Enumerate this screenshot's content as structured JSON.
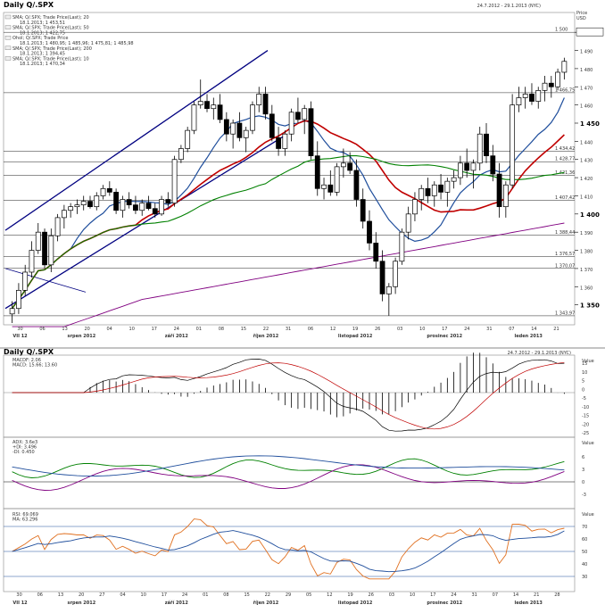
{
  "chart_title": "Daily Q/.SPX",
  "date_range": "24.7.2012 - 29.1.2013 (NYC)",
  "axis_header": [
    "Price",
    "USD"
  ],
  "panel2_title": "Daily Q/.SPX",
  "panel2_range": "24.7.2012 - 29.1.2013 (NYC)",
  "legend_price": [
    {
      "text": "SMA; Q/.SPX; Trade Price(Last); 20",
      "color": "#c00000"
    },
    {
      "text": "18.1.2013; 1 453,51",
      "color": "#c00000"
    },
    {
      "text": "SMA; Q/.SPX; Trade Price(Last); 50",
      "color": "#008000"
    },
    {
      "text": "18.1.2013; 1 422,75",
      "color": "#008000"
    },
    {
      "text": "Ohol; Q/.SPX; Trade Price",
      "color": "#000000"
    },
    {
      "text": "18.1.2013; 1 480,95; 1 485,96; 1 475,81; 1 485,98",
      "color": "#000000"
    },
    {
      "text": "SMA; Q/.SPX; Trade Price(Last); 200",
      "color": "#800080"
    },
    {
      "text": "18.1.2013; 1 394,45",
      "color": "#800080"
    },
    {
      "text": "SMA; Q/.SPX; Trade Price(Last); 10",
      "color": "#1f4e9c"
    },
    {
      "text": "18.1.2013; 1 470,34",
      "color": "#1f4e9c"
    }
  ],
  "legend_macd": [
    {
      "text": "MACDF: 2.06",
      "color": "#000"
    },
    {
      "text": "MACD: 15.66; 13.60",
      "color": "#c00000"
    }
  ],
  "legend_dmi": [
    {
      "text": "ADX: 3.6e3",
      "color": "#1f4e9c"
    },
    {
      "text": "+DI: 3.496",
      "color": "#008000"
    },
    {
      "text": "-DI: 0.450",
      "color": "#800080"
    }
  ],
  "legend_rsi": [
    {
      "text": "RSI: 69.069",
      "color": "#e07020"
    },
    {
      "text": "MA: 63.296",
      "color": "#1f4e9c"
    }
  ],
  "right_axis_unit": [
    "Value",
    "USD"
  ],
  "price_ticks": [
    "1 500",
    "1 490",
    "1 480",
    "1 470",
    "1 460",
    "1 450",
    "1 440",
    "1 430",
    "1 420",
    "1 410",
    "1 400",
    "1 390",
    "1 380",
    "1 370",
    "1 360",
    "1 350"
  ],
  "hlines": [
    "1 500",
    "1 466,75",
    "1 434,42",
    "1 428,77",
    "1 421,36",
    "1 407,42",
    "1 388,44",
    "1 376,57",
    "1 370,07",
    "1 343,97"
  ],
  "macd_ticks": [
    "15",
    "10",
    "5",
    "0",
    "-5",
    "-10",
    "-15",
    "-20",
    "-25"
  ],
  "dmi_ticks": [
    "6",
    "3",
    "0",
    "-3"
  ],
  "rsi_ticks": [
    "70",
    "60",
    "50",
    "40",
    "30"
  ],
  "x_days": [
    "30",
    "06",
    "13",
    "20",
    "27",
    "04",
    "10",
    "17",
    "24",
    "01",
    "08",
    "15",
    "22",
    "29",
    "05",
    "12",
    "19",
    "26",
    "03",
    "10",
    "17",
    "24",
    "31",
    "07",
    "14",
    "21",
    "28"
  ],
  "x_days_price": [
    "30",
    "06",
    "13",
    "20",
    "04",
    "10",
    "17",
    "24",
    "01",
    "08",
    "15",
    "22",
    "31",
    "06",
    "12",
    "19",
    "26",
    "03",
    "10",
    "17",
    "24",
    "31",
    "07",
    "14",
    "21"
  ],
  "x_months": [
    "VII 12",
    "srpen 2012",
    "září 2012",
    "říjen 2012",
    "listopad 2012",
    "prosinec 2012",
    "leden 2013"
  ],
  "chart_data": {
    "type": "candlestick",
    "title": "Daily Q/.SPX",
    "ylabel": "Price USD",
    "ylim": [
      1340,
      1505
    ],
    "candles": [
      [
        1345,
        1352,
        1340,
        1348
      ],
      [
        1348,
        1362,
        1345,
        1358
      ],
      [
        1358,
        1372,
        1355,
        1368
      ],
      [
        1368,
        1385,
        1365,
        1380
      ],
      [
        1380,
        1395,
        1378,
        1390
      ],
      [
        1390,
        1392,
        1370,
        1372
      ],
      [
        1372,
        1392,
        1368,
        1388
      ],
      [
        1388,
        1400,
        1385,
        1398
      ],
      [
        1398,
        1405,
        1392,
        1402
      ],
      [
        1402,
        1406,
        1398,
        1404
      ],
      [
        1404,
        1408,
        1400,
        1405
      ],
      [
        1405,
        1410,
        1402,
        1407
      ],
      [
        1407,
        1410,
        1403,
        1404
      ],
      [
        1404,
        1412,
        1402,
        1410
      ],
      [
        1410,
        1416,
        1408,
        1414
      ],
      [
        1414,
        1418,
        1410,
        1412
      ],
      [
        1412,
        1414,
        1400,
        1402
      ],
      [
        1402,
        1410,
        1398,
        1408
      ],
      [
        1408,
        1412,
        1403,
        1405
      ],
      [
        1405,
        1410,
        1400,
        1402
      ],
      [
        1402,
        1408,
        1399,
        1406
      ],
      [
        1406,
        1410,
        1402,
        1403
      ],
      [
        1403,
        1406,
        1398,
        1400
      ],
      [
        1400,
        1410,
        1399,
        1408
      ],
      [
        1408,
        1412,
        1404,
        1406
      ],
      [
        1406,
        1432,
        1404,
        1430
      ],
      [
        1430,
        1438,
        1428,
        1436
      ],
      [
        1436,
        1448,
        1434,
        1446
      ],
      [
        1446,
        1462,
        1444,
        1460
      ],
      [
        1460,
        1474,
        1458,
        1462
      ],
      [
        1462,
        1466,
        1456,
        1458
      ],
      [
        1458,
        1464,
        1452,
        1460
      ],
      [
        1460,
        1466,
        1450,
        1452
      ],
      [
        1452,
        1456,
        1440,
        1444
      ],
      [
        1444,
        1452,
        1436,
        1450
      ],
      [
        1450,
        1456,
        1440,
        1442
      ],
      [
        1442,
        1448,
        1434,
        1446
      ],
      [
        1446,
        1462,
        1444,
        1460
      ],
      [
        1460,
        1470,
        1456,
        1466
      ],
      [
        1466,
        1470,
        1452,
        1455
      ],
      [
        1455,
        1460,
        1440,
        1442
      ],
      [
        1442,
        1448,
        1432,
        1436
      ],
      [
        1436,
        1446,
        1432,
        1444
      ],
      [
        1444,
        1458,
        1440,
        1456
      ],
      [
        1456,
        1464,
        1450,
        1452
      ],
      [
        1452,
        1460,
        1444,
        1458
      ],
      [
        1458,
        1462,
        1430,
        1432
      ],
      [
        1432,
        1440,
        1410,
        1414
      ],
      [
        1414,
        1420,
        1408,
        1416
      ],
      [
        1416,
        1424,
        1410,
        1412
      ],
      [
        1412,
        1428,
        1410,
        1426
      ],
      [
        1426,
        1436,
        1420,
        1428
      ],
      [
        1428,
        1434,
        1422,
        1424
      ],
      [
        1424,
        1430,
        1404,
        1408
      ],
      [
        1408,
        1414,
        1392,
        1396
      ],
      [
        1396,
        1402,
        1380,
        1384
      ],
      [
        1384,
        1390,
        1370,
        1374
      ],
      [
        1374,
        1380,
        1352,
        1356
      ],
      [
        1356,
        1362,
        1344,
        1360
      ],
      [
        1360,
        1376,
        1356,
        1374
      ],
      [
        1374,
        1392,
        1372,
        1390
      ],
      [
        1390,
        1404,
        1386,
        1400
      ],
      [
        1400,
        1412,
        1396,
        1408
      ],
      [
        1408,
        1416,
        1402,
        1414
      ],
      [
        1414,
        1420,
        1406,
        1410
      ],
      [
        1410,
        1418,
        1404,
        1416
      ],
      [
        1416,
        1422,
        1408,
        1412
      ],
      [
        1412,
        1420,
        1404,
        1418
      ],
      [
        1418,
        1424,
        1414,
        1420
      ],
      [
        1420,
        1432,
        1416,
        1428
      ],
      [
        1428,
        1436,
        1420,
        1424
      ],
      [
        1424,
        1430,
        1414,
        1428
      ],
      [
        1428,
        1448,
        1424,
        1444
      ],
      [
        1444,
        1450,
        1428,
        1432
      ],
      [
        1432,
        1438,
        1418,
        1422
      ],
      [
        1422,
        1428,
        1398,
        1404
      ],
      [
        1404,
        1418,
        1398,
        1416
      ],
      [
        1416,
        1466,
        1414,
        1460
      ],
      [
        1460,
        1470,
        1456,
        1464
      ],
      [
        1464,
        1470,
        1458,
        1466
      ],
      [
        1466,
        1472,
        1460,
        1462
      ],
      [
        1462,
        1470,
        1458,
        1468
      ],
      [
        1468,
        1476,
        1462,
        1472
      ],
      [
        1472,
        1476,
        1464,
        1470
      ],
      [
        1470,
        1480,
        1468,
        1478
      ],
      [
        1478,
        1486,
        1474,
        1484
      ]
    ],
    "series": [
      {
        "name": "SMA 10",
        "color": "#1f4e9c"
      },
      {
        "name": "SMA 20",
        "color": "#c00000"
      },
      {
        "name": "SMA 50",
        "color": "#008000"
      },
      {
        "name": "SMA 200",
        "color": "#800080"
      }
    ]
  }
}
